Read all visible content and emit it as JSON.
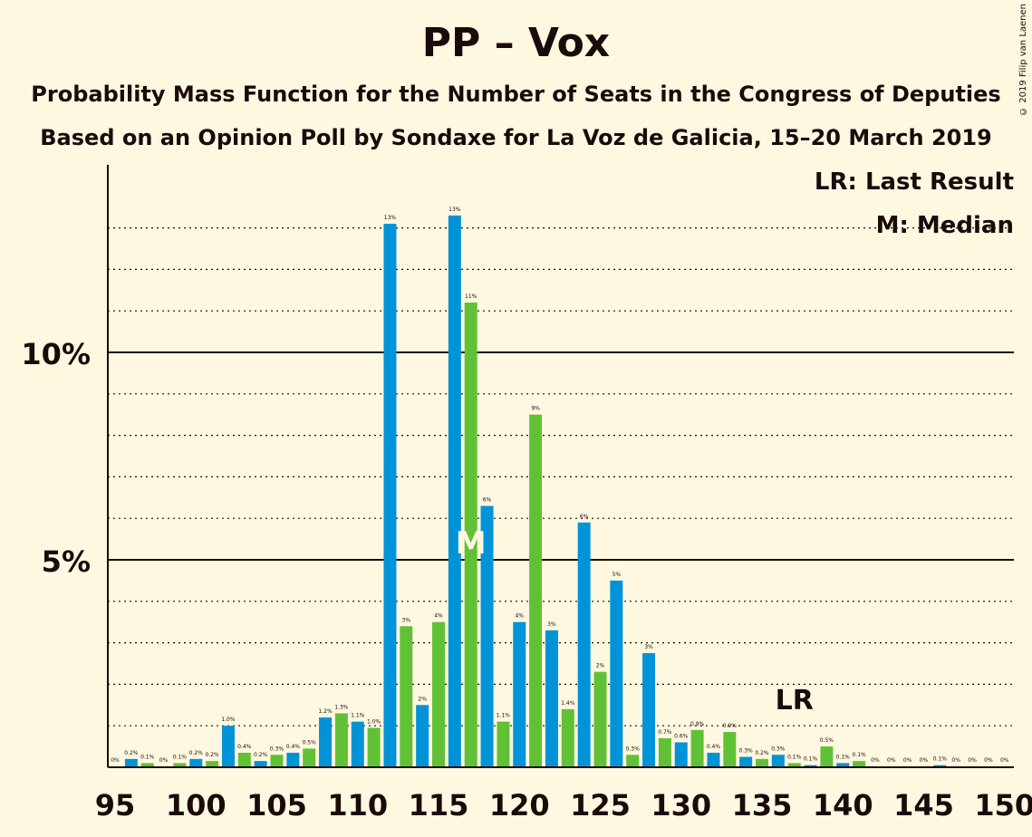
{
  "title": "PP – Vox",
  "subtitle": "Probability Mass Function for the Number of Seats in the Congress of Deputies",
  "subtitle2": "Based on an Opinion Poll by Sondaxe for La Voz de Galicia, 15–20 March 2019",
  "copyright": "© 2019 Filip van Laenen",
  "legend": {
    "lr": "LR: Last Result",
    "median": "M: Median"
  },
  "colors": {
    "blue": "#0093D8",
    "green": "#61C136",
    "background": "#FFF8E1",
    "text": "#1a0a0a"
  },
  "chart_data": {
    "type": "bar",
    "x": [
      95,
      96,
      97,
      98,
      99,
      100,
      101,
      102,
      103,
      104,
      105,
      106,
      107,
      108,
      109,
      110,
      111,
      112,
      113,
      114,
      115,
      116,
      117,
      118,
      119,
      120,
      121,
      122,
      123,
      124,
      125,
      126,
      127,
      128,
      129,
      130,
      131,
      132,
      133,
      134,
      135,
      136,
      137,
      138,
      139,
      140,
      141,
      142,
      143,
      144,
      145,
      146,
      147,
      148,
      149,
      150
    ],
    "values": [
      0.02,
      0.2,
      0.1,
      0.02,
      0.1,
      0.2,
      0.15,
      1.0,
      0.35,
      0.15,
      0.3,
      0.35,
      0.45,
      1.2,
      1.3,
      1.1,
      0.95,
      13.1,
      3.4,
      1.5,
      3.5,
      13.3,
      11.2,
      6.3,
      1.1,
      3.5,
      8.5,
      3.3,
      1.4,
      5.9,
      2.3,
      4.5,
      0.3,
      2.75,
      0.7,
      0.6,
      0.9,
      0.35,
      0.85,
      0.25,
      0.2,
      0.3,
      0.1,
      0.05,
      0.5,
      0.1,
      0.15,
      0.02,
      0.02,
      0.02,
      0.02,
      0.05,
      0.02,
      0.02,
      0.02,
      0.02
    ],
    "labels": [
      "0%",
      "0.2%",
      "0.1%",
      "0%",
      "0.1%",
      "0.2%",
      "0.2%",
      "1.0%",
      "0.4%",
      "0.2%",
      "0.3%",
      "0.4%",
      "0.5%",
      "1.2%",
      "1.3%",
      "1.1%",
      "1.0%",
      "13%",
      "3%",
      "2%",
      "4%",
      "13%",
      "11%",
      "6%",
      "1.1%",
      "4%",
      "9%",
      "3%",
      "1.4%",
      "6%",
      "2%",
      "5%",
      "0.3%",
      "3%",
      "0.7%",
      "0.6%",
      "0.9%",
      "0.4%",
      "0.9%",
      "0.3%",
      "0.2%",
      "0.3%",
      "0.1%",
      "0.1%",
      "0.5%",
      "0.1%",
      "0.1%",
      "0%",
      "0%",
      "0%",
      "0%",
      "0.1%",
      "0%",
      "0%",
      "0%",
      "0%"
    ],
    "xticks": [
      95,
      100,
      105,
      110,
      115,
      120,
      125,
      130,
      135,
      140,
      145,
      150
    ],
    "xtick_labels": [
      "95",
      "100",
      "105",
      "110",
      "115",
      "120",
      "125",
      "130",
      "135",
      "140",
      "145",
      "150"
    ],
    "yticks": [
      5,
      10
    ],
    "ytick_labels": [
      "5%",
      "10%"
    ],
    "ylim": [
      0,
      14.5
    ],
    "xlim": [
      95,
      150
    ],
    "median": 117,
    "median_marker": "M",
    "last_result": 137,
    "last_result_marker": "LR",
    "grid": "dotted every 1%, solid at 5% and 10%"
  }
}
